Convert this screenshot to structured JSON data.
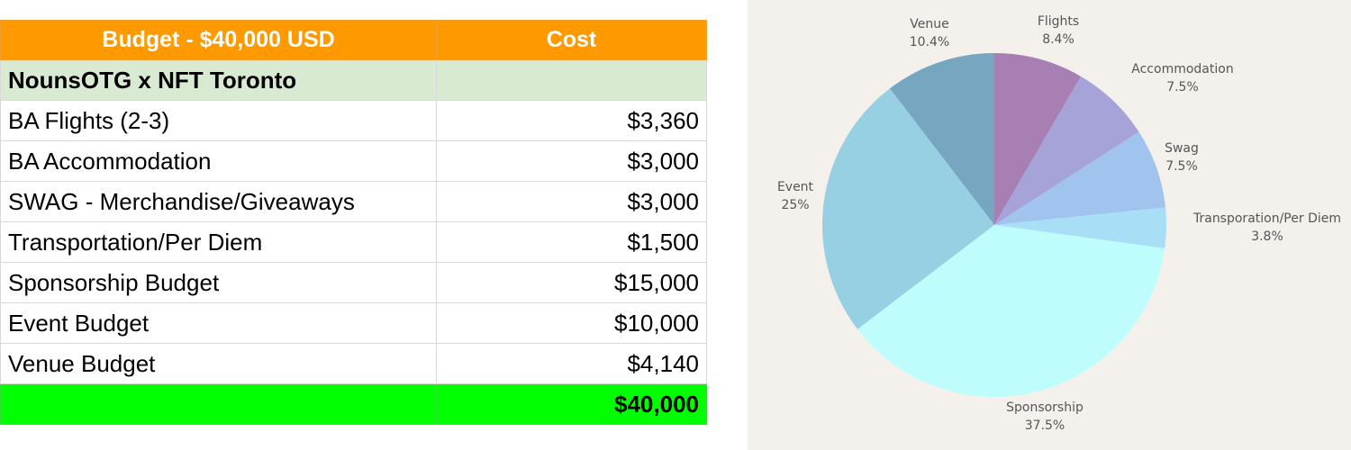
{
  "table": {
    "header": {
      "item": "Budget - $40,000 USD",
      "cost": "Cost"
    },
    "section": "NounsOTG x NFT Toronto",
    "rows": [
      {
        "item": "BA Flights (2-3)",
        "cost": "$3,360"
      },
      {
        "item": "BA Accommodation",
        "cost": "$3,000"
      },
      {
        "item": "SWAG - Merchandise/Giveaways",
        "cost": "$3,000"
      },
      {
        "item": "Transportation/Per Diem",
        "cost": "$1,500"
      },
      {
        "item": "Sponsorship Budget",
        "cost": "$15,000"
      },
      {
        "item": "Event Budget",
        "cost": "$10,000"
      },
      {
        "item": "Venue Budget",
        "cost": "$4,140"
      }
    ],
    "total": "$40,000"
  },
  "chart_data": {
    "type": "pie",
    "title": "",
    "slices": [
      {
        "label": "Flights",
        "value": 8.4,
        "pct": "8.4%",
        "color": "#a87fb3"
      },
      {
        "label": "Accommodation",
        "value": 7.5,
        "pct": "7.5%",
        "color": "#a5a3d8"
      },
      {
        "label": "Swag",
        "value": 7.5,
        "pct": "7.5%",
        "color": "#a0c4ee"
      },
      {
        "label": "Transporation/Per Diem",
        "value": 3.8,
        "pct": "3.8%",
        "color": "#a8dff7"
      },
      {
        "label": "Sponsorship",
        "value": 37.5,
        "pct": "37.5%",
        "color": "#bffdfd"
      },
      {
        "label": "Event",
        "value": 25,
        "pct": "25%",
        "color": "#97d0e3"
      },
      {
        "label": "Venue",
        "value": 10.4,
        "pct": "10.4%",
        "color": "#77a6c1"
      }
    ],
    "background": "#f4f1ec",
    "legend": "none (labels outside slices)"
  }
}
